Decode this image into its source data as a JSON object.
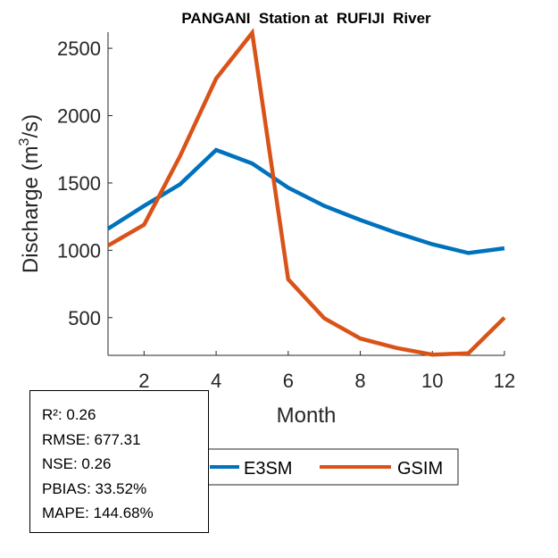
{
  "chart_data": {
    "type": "line",
    "title": "PANGANI  Station at  RUFIJI  River",
    "xlabel": "Month",
    "ylabel": "Discharge (m",
    "ylabel_sup": "3",
    "ylabel_end": "/s)",
    "xlim": [
      1,
      12
    ],
    "ylim": [
      220,
      2620
    ],
    "xticks": [
      2,
      4,
      6,
      8,
      10,
      12
    ],
    "yticks": [
      500,
      1000,
      1500,
      2000,
      2500
    ],
    "grid": false,
    "legend_position": "bottom-center",
    "x": [
      1,
      2,
      3,
      4,
      5,
      6,
      7,
      8,
      9,
      10,
      11,
      12
    ],
    "series": [
      {
        "name": "E3SM",
        "color": "#0072BD",
        "values": [
          1160,
          1330,
          1490,
          1745,
          1645,
          1465,
          1330,
          1225,
          1130,
          1045,
          980,
          1015
        ]
      },
      {
        "name": "GSIM",
        "color": "#D95319",
        "values": [
          1035,
          1190,
          1700,
          2275,
          2615,
          785,
          495,
          345,
          275,
          225,
          235,
          500
        ]
      }
    ]
  },
  "stats": {
    "r2": "R²: 0.26",
    "rmse": "RMSE: 677.31",
    "nse": "NSE: 0.26",
    "pbias": "PBIAS: 33.52%",
    "mape": "MAPE: 144.68%"
  }
}
